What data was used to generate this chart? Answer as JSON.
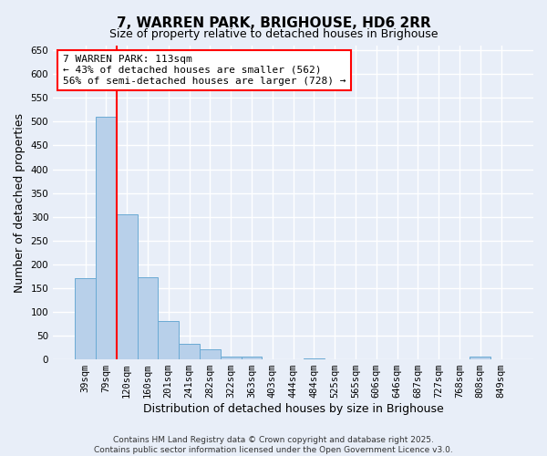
{
  "title": "7, WARREN PARK, BRIGHOUSE, HD6 2RR",
  "subtitle": "Size of property relative to detached houses in Brighouse",
  "xlabel": "Distribution of detached houses by size in Brighouse",
  "ylabel": "Number of detached properties",
  "categories": [
    "39sqm",
    "79sqm",
    "120sqm",
    "160sqm",
    "201sqm",
    "241sqm",
    "282sqm",
    "322sqm",
    "363sqm",
    "403sqm",
    "444sqm",
    "484sqm",
    "525sqm",
    "565sqm",
    "606sqm",
    "646sqm",
    "687sqm",
    "727sqm",
    "768sqm",
    "808sqm",
    "849sqm"
  ],
  "values": [
    170,
    510,
    305,
    172,
    80,
    33,
    22,
    5,
    6,
    0,
    0,
    3,
    0,
    0,
    0,
    0,
    0,
    0,
    0,
    5,
    0
  ],
  "bar_color": "#b8d0ea",
  "bar_edge_color": "#6aaad4",
  "red_line_x": 2,
  "annotation_line1": "7 WARREN PARK: 113sqm",
  "annotation_line2": "← 43% of detached houses are smaller (562)",
  "annotation_line3": "56% of semi-detached houses are larger (728) →",
  "annotation_box_color": "white",
  "annotation_box_edge_color": "red",
  "vline_color": "red",
  "ylim": [
    0,
    660
  ],
  "yticks": [
    0,
    50,
    100,
    150,
    200,
    250,
    300,
    350,
    400,
    450,
    500,
    550,
    600,
    650
  ],
  "footnote1": "Contains HM Land Registry data © Crown copyright and database right 2025.",
  "footnote2": "Contains public sector information licensed under the Open Government Licence v3.0.",
  "background_color": "#e8eef8",
  "grid_color": "white",
  "title_fontsize": 11,
  "subtitle_fontsize": 9,
  "axis_label_fontsize": 9,
  "tick_fontsize": 7.5,
  "annotation_fontsize": 8,
  "footnote_fontsize": 6.5
}
